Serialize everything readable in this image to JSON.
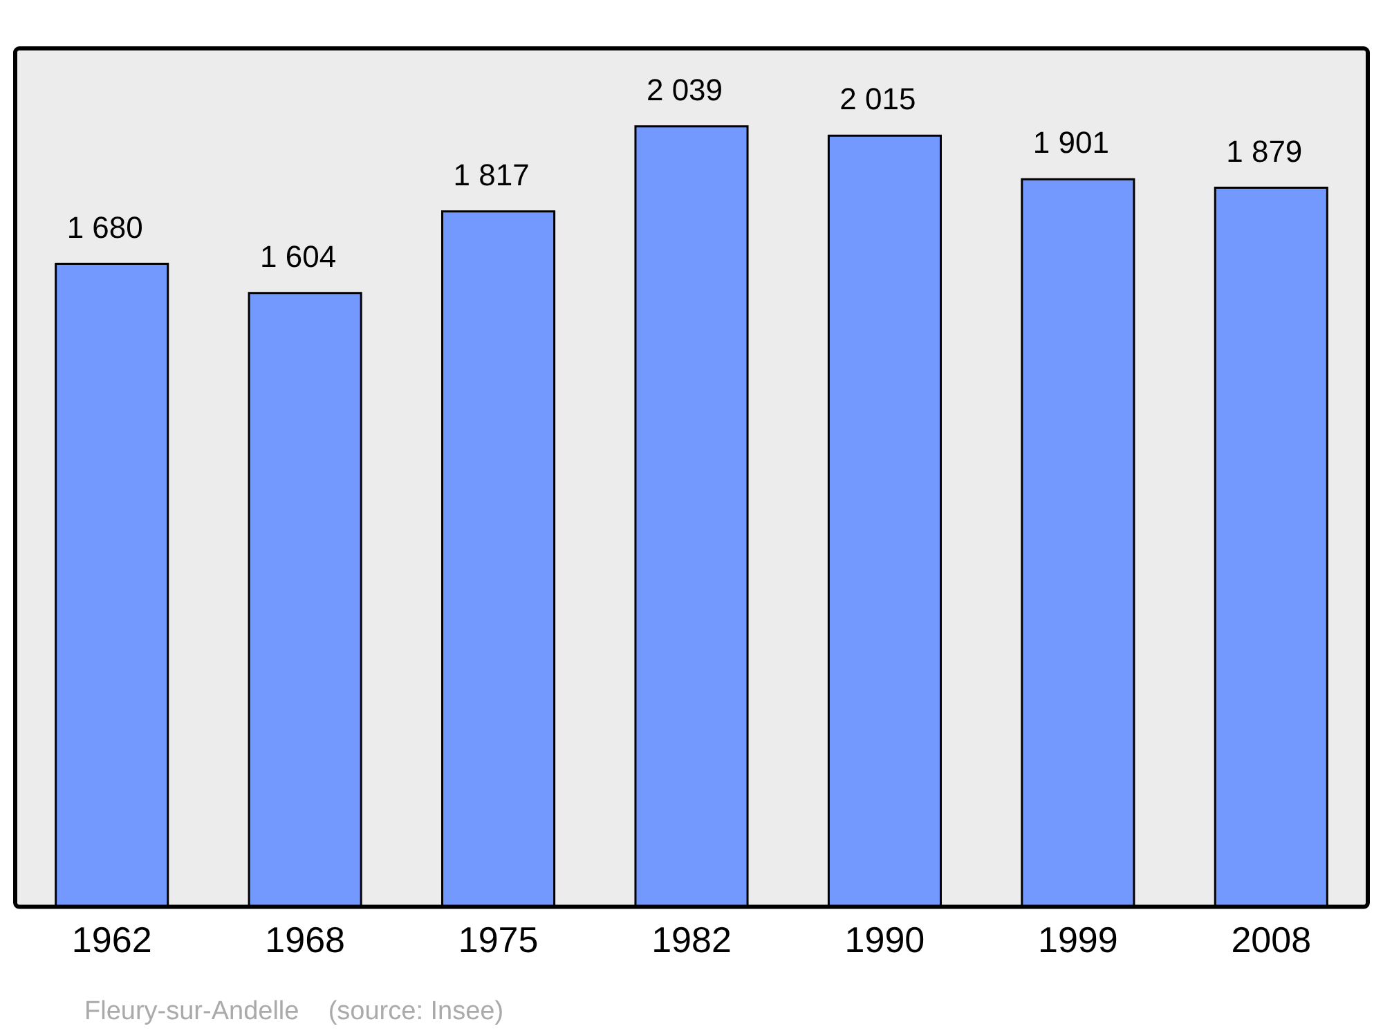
{
  "chart_data": {
    "type": "bar",
    "categories": [
      "1962",
      "1968",
      "1975",
      "1982",
      "1990",
      "1999",
      "2008"
    ],
    "values": [
      1680,
      1604,
      1817,
      2039,
      2015,
      1901,
      1879
    ],
    "value_labels": [
      "1 680",
      "1 604",
      "1 817",
      "2 039",
      "2 015",
      "1 901",
      "1 879"
    ],
    "color": "#7399ff",
    "annotations": [
      "Fleury-sur-Andelle    (source: Insee)"
    ],
    "grid": false,
    "legend": false
  }
}
